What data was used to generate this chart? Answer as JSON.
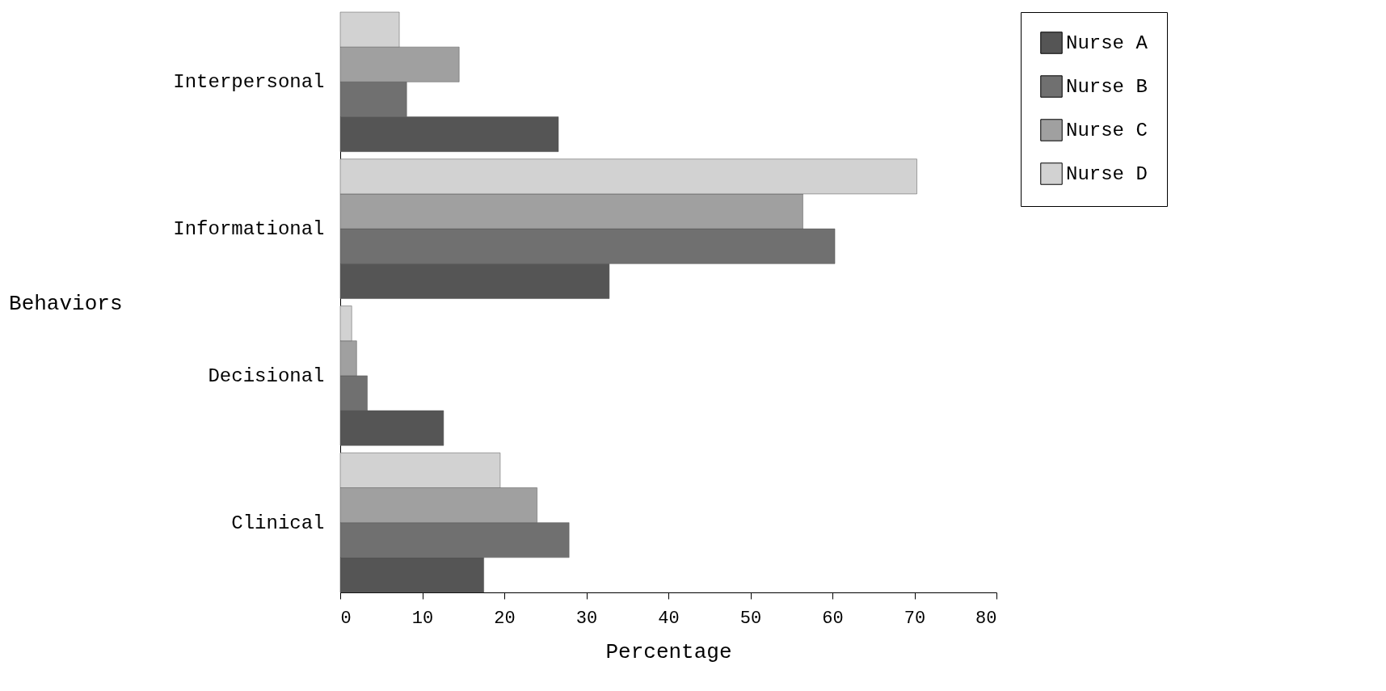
{
  "chart_data": {
    "type": "bar",
    "orientation": "horizontal",
    "xlabel": "Percentage",
    "ylabel": "Behaviors",
    "categories": [
      "Interpersonal",
      "Informational",
      "Decisional",
      "Clinical"
    ],
    "series": [
      {
        "name": "Nurse A",
        "color": "#555555",
        "values": [
          26.6,
          32.8,
          12.6,
          17.5
        ]
      },
      {
        "name": "Nurse B",
        "color": "#707070",
        "values": [
          8.1,
          60.3,
          3.3,
          27.9
        ]
      },
      {
        "name": "Nurse C",
        "color": "#a0a0a0",
        "values": [
          14.5,
          56.4,
          2.0,
          24.0
        ]
      },
      {
        "name": "Nurse D",
        "color": "#d2d2d2",
        "values": [
          7.2,
          70.3,
          1.4,
          19.5
        ]
      }
    ],
    "xlim": [
      0,
      80
    ],
    "xticks": [
      0,
      10,
      20,
      30,
      40,
      50,
      60,
      70,
      80
    ],
    "grid": false,
    "legend": "right"
  }
}
